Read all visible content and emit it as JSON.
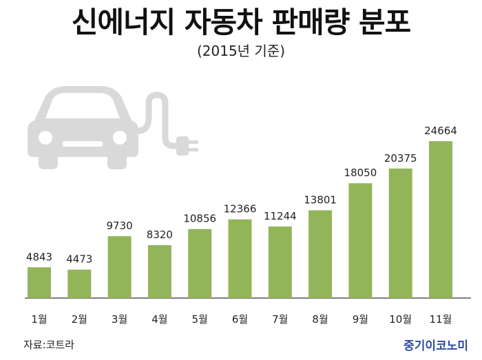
{
  "header": {
    "title": "신에너지 자동차 판매량 분포",
    "subtitle": "(2015년 기준)"
  },
  "footer": {
    "source": "자료:코트라",
    "brand": "중기이코노미"
  },
  "icon": {
    "name": "electric-car-icon",
    "color": "#d9d9d9"
  },
  "colors": {
    "bar": "#93b55a",
    "axis": "#333333",
    "label": "#222222"
  },
  "chart_data": {
    "type": "bar",
    "title": "신에너지 자동차 판매량 분포",
    "subtitle": "(2015년 기준)",
    "categories": [
      "1월",
      "2월",
      "3월",
      "4월",
      "5월",
      "6월",
      "7월",
      "8월",
      "9월",
      "10월",
      "11월"
    ],
    "values": [
      4843,
      4473,
      9730,
      8320,
      10856,
      12366,
      11244,
      13801,
      18050,
      20375,
      24664
    ],
    "ylim": [
      0,
      27600
    ],
    "grid": false,
    "legend": "none",
    "data_labels": true
  }
}
